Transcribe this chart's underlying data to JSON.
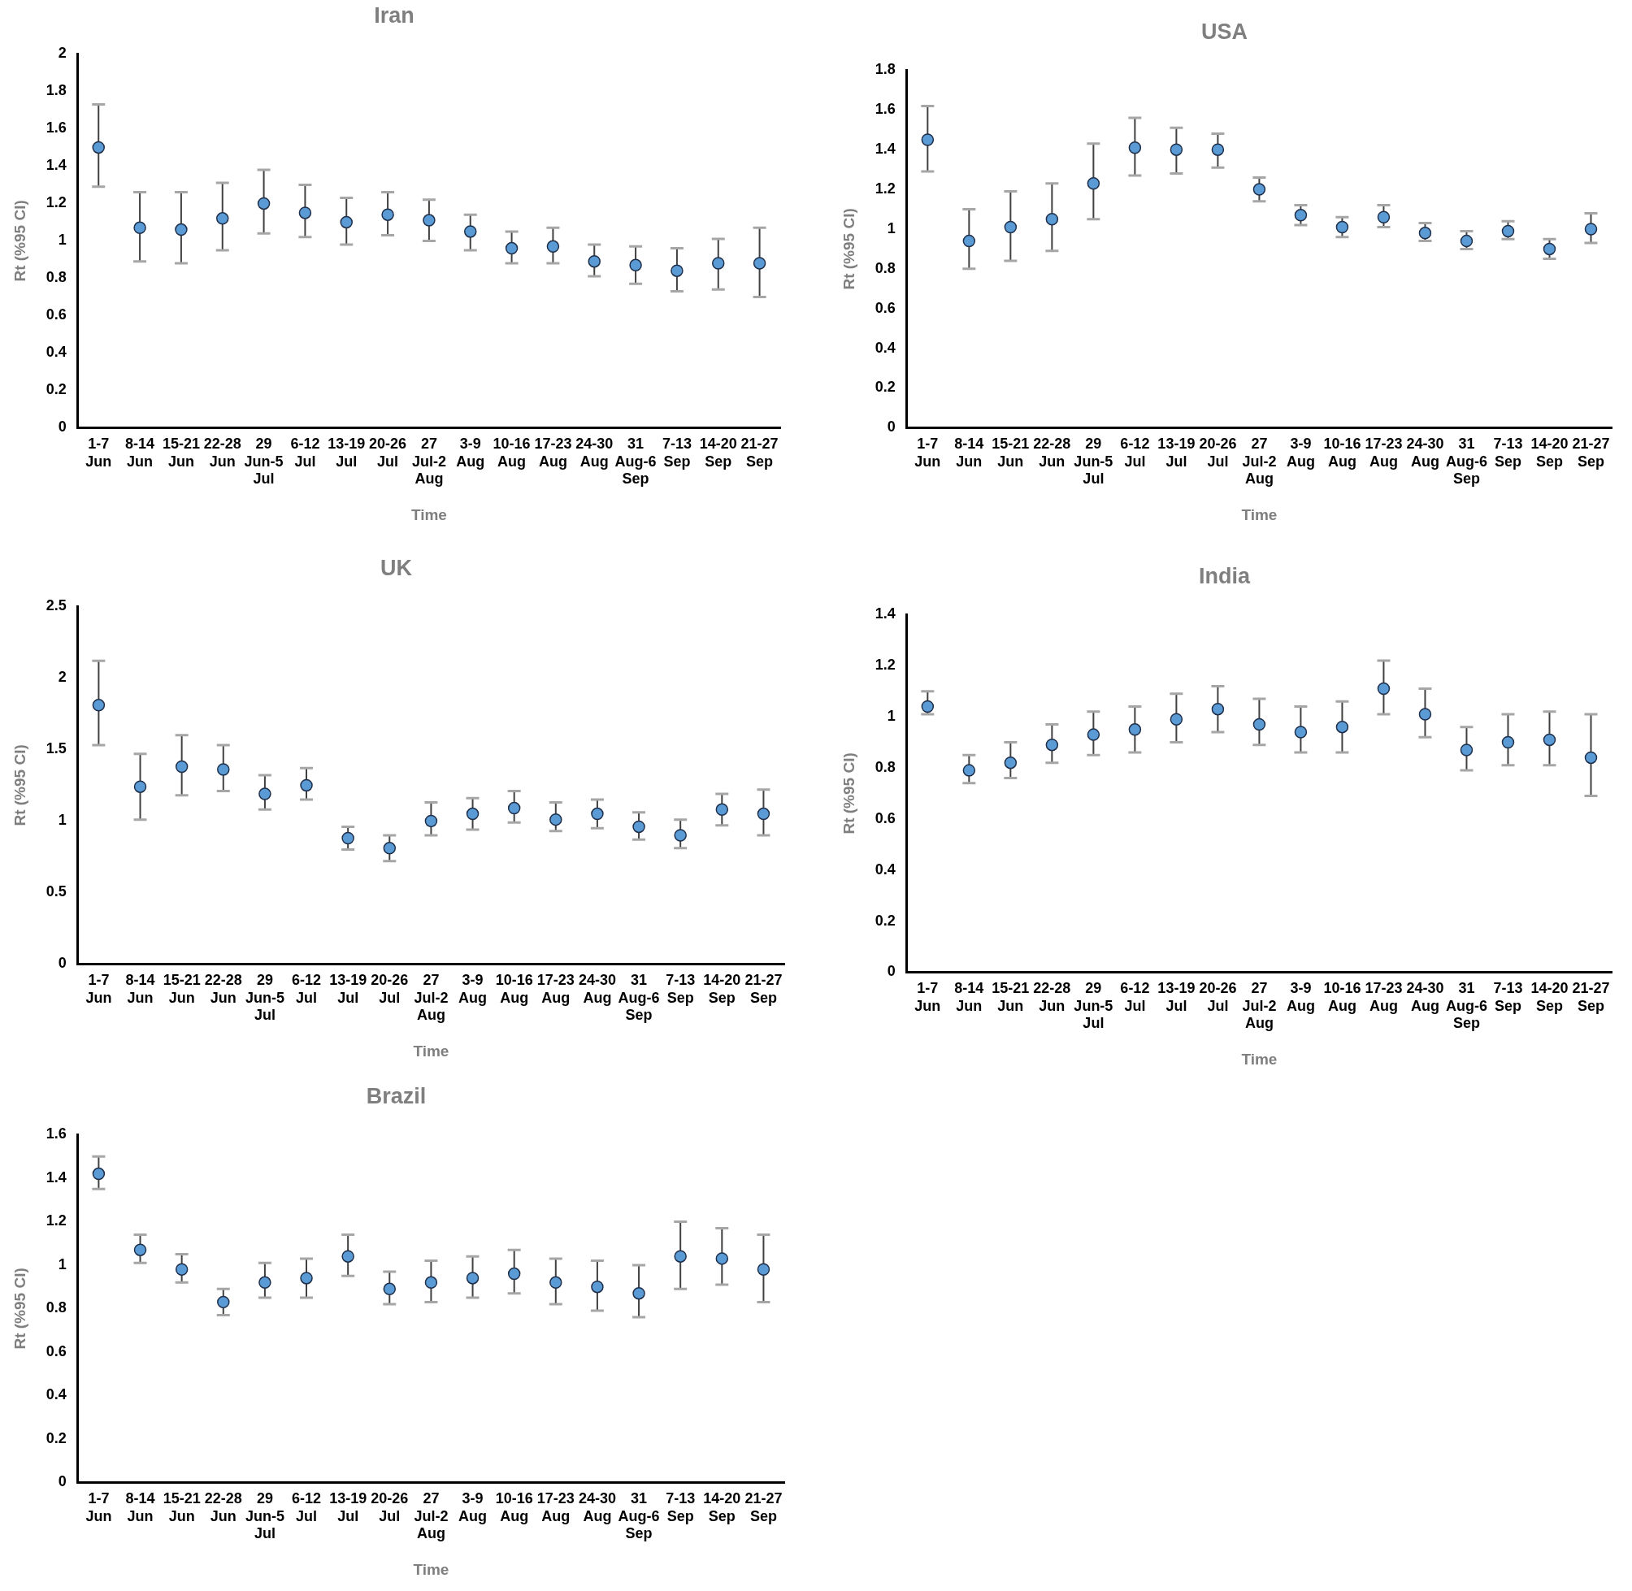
{
  "chart_data": [
    {
      "type": "scatter",
      "title": "Iran",
      "xlabel": "Time",
      "ylabel": "Rt (%95 CI)",
      "categories": [
        "1-7\nJun",
        "8-14\nJun",
        "15-21\nJun",
        "22-28\nJun",
        "29\nJun-5\nJul",
        "6-12\nJul",
        "13-19\nJul",
        "20-26\nJul",
        "27\nJul-2\nAug",
        "3-9\nAug",
        "10-16\nAug",
        "17-23\nAug",
        "24-30\nAug",
        "31\nAug-6\nSep",
        "7-13\nSep",
        "14-20\nSep",
        "21-27\nSep"
      ],
      "color": "#5b9bd5",
      "marker": "circle",
      "grid": false,
      "legend": false,
      "ylim": [
        0,
        2
      ],
      "yticks": [
        0,
        0.2,
        0.4,
        0.6,
        0.8,
        1,
        1.2,
        1.4,
        1.6,
        1.8,
        2
      ],
      "values": [
        1.5,
        1.07,
        1.06,
        1.12,
        1.2,
        1.15,
        1.1,
        1.14,
        1.11,
        1.05,
        0.96,
        0.97,
        0.89,
        0.87,
        0.84,
        0.88,
        0.88
      ],
      "errors": [
        [
          1.29,
          1.73
        ],
        [
          0.89,
          1.26
        ],
        [
          0.88,
          1.26
        ],
        [
          0.95,
          1.31
        ],
        [
          1.04,
          1.38
        ],
        [
          1.02,
          1.3
        ],
        [
          0.98,
          1.23
        ],
        [
          1.03,
          1.26
        ],
        [
          1.0,
          1.22
        ],
        [
          0.95,
          1.14
        ],
        [
          0.88,
          1.05
        ],
        [
          0.88,
          1.07
        ],
        [
          0.81,
          0.98
        ],
        [
          0.77,
          0.97
        ],
        [
          0.73,
          0.96
        ],
        [
          0.74,
          1.01
        ],
        [
          0.7,
          1.07
        ]
      ]
    },
    {
      "type": "scatter",
      "title": "USA",
      "xlabel": "Time",
      "ylabel": "Rt (%95 CI)",
      "categories": [
        "1-7\nJun",
        "8-14\nJun",
        "15-21\nJun",
        "22-28\nJun",
        "29\nJun-5\nJul",
        "6-12\nJul",
        "13-19\nJul",
        "20-26\nJul",
        "27\nJul-2\nAug",
        "3-9\nAug",
        "10-16\nAug",
        "17-23\nAug",
        "24-30\nAug",
        "31\nAug-6\nSep",
        "7-13\nSep",
        "14-20\nSep",
        "21-27\nSep"
      ],
      "color": "#5b9bd5",
      "marker": "circle",
      "grid": false,
      "legend": false,
      "ylim": [
        0,
        1.8
      ],
      "yticks": [
        0,
        0.2,
        0.4,
        0.6,
        0.8,
        1,
        1.2,
        1.4,
        1.6,
        1.8
      ],
      "values": [
        1.45,
        0.94,
        1.01,
        1.05,
        1.23,
        1.41,
        1.4,
        1.4,
        1.2,
        1.07,
        1.01,
        1.06,
        0.98,
        0.94,
        0.99,
        0.9,
        1.0
      ],
      "errors": [
        [
          1.29,
          1.62
        ],
        [
          0.8,
          1.1
        ],
        [
          0.84,
          1.19
        ],
        [
          0.89,
          1.23
        ],
        [
          1.05,
          1.43
        ],
        [
          1.27,
          1.56
        ],
        [
          1.28,
          1.51
        ],
        [
          1.31,
          1.48
        ],
        [
          1.14,
          1.26
        ],
        [
          1.02,
          1.12
        ],
        [
          0.96,
          1.06
        ],
        [
          1.01,
          1.12
        ],
        [
          0.94,
          1.03
        ],
        [
          0.9,
          0.99
        ],
        [
          0.95,
          1.04
        ],
        [
          0.85,
          0.95
        ],
        [
          0.93,
          1.08
        ]
      ]
    },
    {
      "type": "scatter",
      "title": "UK",
      "xlabel": "Time",
      "ylabel": "Rt (%95 CI)",
      "categories": [
        "1-7\nJun",
        "8-14\nJun",
        "15-21\nJun",
        "22-28\nJun",
        "29\nJun-5\nJul",
        "6-12\nJul",
        "13-19\nJul",
        "20-26\nJul",
        "27\nJul-2\nAug",
        "3-9\nAug",
        "10-16\nAug",
        "17-23\nAug",
        "24-30\nAug",
        "31\nAug-6\nSep",
        "7-13\nSep",
        "14-20\nSep",
        "21-27\nSep"
      ],
      "color": "#5b9bd5",
      "marker": "circle",
      "grid": false,
      "legend": false,
      "ylim": [
        0,
        2.5
      ],
      "yticks": [
        0,
        0.5,
        1,
        1.5,
        2,
        2.5
      ],
      "values": [
        1.81,
        1.24,
        1.38,
        1.36,
        1.19,
        1.25,
        0.88,
        0.81,
        1.0,
        1.05,
        1.09,
        1.01,
        1.05,
        0.96,
        0.9,
        1.08,
        1.05
      ],
      "errors": [
        [
          1.53,
          2.12
        ],
        [
          1.01,
          1.47
        ],
        [
          1.18,
          1.6
        ],
        [
          1.21,
          1.53
        ],
        [
          1.08,
          1.32
        ],
        [
          1.15,
          1.37
        ],
        [
          0.8,
          0.96
        ],
        [
          0.72,
          0.9
        ],
        [
          0.9,
          1.13
        ],
        [
          0.94,
          1.16
        ],
        [
          0.99,
          1.21
        ],
        [
          0.93,
          1.13
        ],
        [
          0.95,
          1.15
        ],
        [
          0.87,
          1.06
        ],
        [
          0.81,
          1.01
        ],
        [
          0.97,
          1.19
        ],
        [
          0.9,
          1.22
        ]
      ]
    },
    {
      "type": "scatter",
      "title": "India",
      "xlabel": "Time",
      "ylabel": "Rt (%95 CI)",
      "categories": [
        "1-7\nJun",
        "8-14\nJun",
        "15-21\nJun",
        "22-28\nJun",
        "29\nJun-5\nJul",
        "6-12\nJul",
        "13-19\nJul",
        "20-26\nJul",
        "27\nJul-2\nAug",
        "3-9\nAug",
        "10-16\nAug",
        "17-23\nAug",
        "24-30\nAug",
        "31\nAug-6\nSep",
        "7-13\nSep",
        "14-20\nSep",
        "21-27\nSep"
      ],
      "color": "#5b9bd5",
      "marker": "circle",
      "grid": false,
      "legend": false,
      "ylim": [
        0,
        1.4
      ],
      "yticks": [
        0,
        0.2,
        0.4,
        0.6,
        0.8,
        1,
        1.2,
        1.4
      ],
      "values": [
        1.04,
        0.79,
        0.82,
        0.89,
        0.93,
        0.95,
        0.99,
        1.03,
        0.97,
        0.94,
        0.96,
        1.11,
        1.01,
        0.87,
        0.9,
        0.91,
        0.84
      ],
      "errors": [
        [
          1.01,
          1.1
        ],
        [
          0.74,
          0.85
        ],
        [
          0.76,
          0.9
        ],
        [
          0.82,
          0.97
        ],
        [
          0.85,
          1.02
        ],
        [
          0.86,
          1.04
        ],
        [
          0.9,
          1.09
        ],
        [
          0.94,
          1.12
        ],
        [
          0.89,
          1.07
        ],
        [
          0.86,
          1.04
        ],
        [
          0.86,
          1.06
        ],
        [
          1.01,
          1.22
        ],
        [
          0.92,
          1.11
        ],
        [
          0.79,
          0.96
        ],
        [
          0.81,
          1.01
        ],
        [
          0.81,
          1.02
        ],
        [
          0.69,
          1.01
        ]
      ]
    },
    {
      "type": "scatter",
      "title": "Brazil",
      "xlabel": "Time",
      "ylabel": "Rt (%95 CI)",
      "categories": [
        "1-7\nJun",
        "8-14\nJun",
        "15-21\nJun",
        "22-28\nJun",
        "29\nJun-5\nJul",
        "6-12\nJul",
        "13-19\nJul",
        "20-26\nJul",
        "27\nJul-2\nAug",
        "3-9\nAug",
        "10-16\nAug",
        "17-23\nAug",
        "24-30\nAug",
        "31\nAug-6\nSep",
        "7-13\nSep",
        "14-20\nSep",
        "21-27\nSep"
      ],
      "color": "#5b9bd5",
      "marker": "circle",
      "grid": false,
      "legend": false,
      "ylim": [
        0,
        1.6
      ],
      "yticks": [
        0,
        0.2,
        0.4,
        0.6,
        0.8,
        1,
        1.2,
        1.4,
        1.6
      ],
      "values": [
        1.42,
        1.07,
        0.98,
        0.83,
        0.92,
        0.94,
        1.04,
        0.89,
        0.92,
        0.94,
        0.96,
        0.92,
        0.9,
        0.87,
        1.04,
        1.03,
        0.98
      ],
      "errors": [
        [
          1.35,
          1.5
        ],
        [
          1.01,
          1.14
        ],
        [
          0.92,
          1.05
        ],
        [
          0.77,
          0.89
        ],
        [
          0.85,
          1.01
        ],
        [
          0.85,
          1.03
        ],
        [
          0.95,
          1.14
        ],
        [
          0.82,
          0.97
        ],
        [
          0.83,
          1.02
        ],
        [
          0.85,
          1.04
        ],
        [
          0.87,
          1.07
        ],
        [
          0.82,
          1.03
        ],
        [
          0.79,
          1.02
        ],
        [
          0.76,
          1.0
        ],
        [
          0.89,
          1.2
        ],
        [
          0.91,
          1.17
        ],
        [
          0.83,
          1.14
        ]
      ]
    }
  ]
}
